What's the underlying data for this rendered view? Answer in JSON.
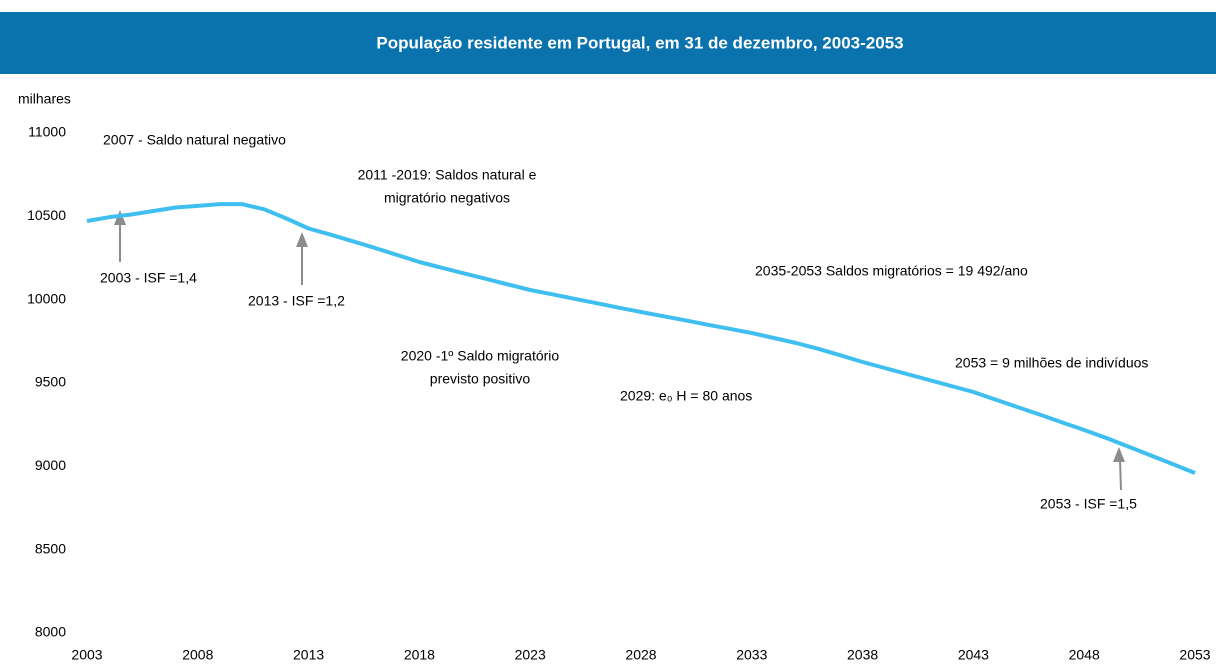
{
  "chart_data": {
    "type": "line",
    "title": "População residente em Portugal, em 31 de dezembro, 2003-2053",
    "y_label": "milhares",
    "x": [
      2003,
      2004,
      2005,
      2006,
      2007,
      2008,
      2009,
      2010,
      2011,
      2012,
      2013,
      2014,
      2015,
      2016,
      2017,
      2018,
      2019,
      2020,
      2021,
      2022,
      2023,
      2024,
      2025,
      2026,
      2027,
      2028,
      2029,
      2030,
      2031,
      2032,
      2033,
      2034,
      2035,
      2036,
      2037,
      2038,
      2039,
      2040,
      2041,
      2042,
      2043,
      2044,
      2045,
      2046,
      2047,
      2048,
      2049,
      2050,
      2051,
      2052,
      2053
    ],
    "series": [
      {
        "name": "População residente",
        "color": "#3fbff0",
        "values": [
          10472,
          10495,
          10511,
          10532,
          10553,
          10563,
          10573,
          10573,
          10542,
          10487,
          10427,
          10390,
          10350,
          10310,
          10268,
          10226,
          10192,
          10158,
          10125,
          10091,
          10058,
          10032,
          10005,
          9979,
          9952,
          9926,
          9901,
          9876,
          9850,
          9825,
          9800,
          9770,
          9740,
          9705,
          9666,
          9626,
          9590,
          9554,
          9518,
          9482,
          9446,
          9400,
          9355,
          9310,
          9264,
          9218,
          9170,
          9118,
          9066,
          9013,
          8960
        ]
      }
    ],
    "xlim": [
      2003,
      2053
    ],
    "xticks": [
      2003,
      2008,
      2013,
      2018,
      2023,
      2028,
      2033,
      2038,
      2043,
      2048,
      2053
    ],
    "ylim": [
      8000,
      11000
    ],
    "yticks": [
      8000,
      8500,
      9000,
      9500,
      10000,
      10500,
      11000
    ],
    "grid": false,
    "annotations": [
      "2007 - Saldo natural negativo",
      "2011 -2019:  Saldos natural e",
      "migratório negativos",
      "2003 - ISF =1,4",
      "2013 - ISF =1,2",
      "2035-2053 Saldos migratórios = 19 492/ano",
      "2020 -1º Saldo migratório",
      "previsto positivo",
      "2053 = 9 milhões de indivíduos",
      "2029: e₀ H = 80 anos",
      "2053 - ISF =1,5"
    ]
  }
}
